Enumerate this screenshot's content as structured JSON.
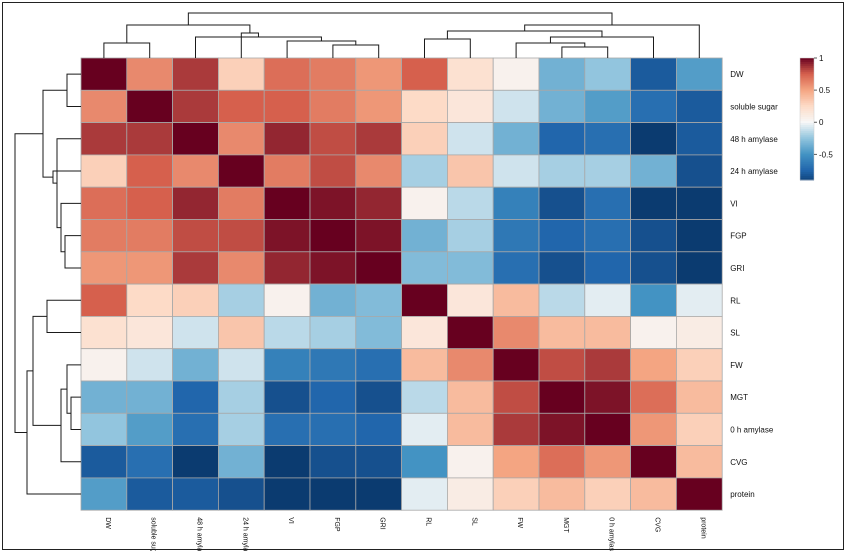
{
  "chart_data": {
    "type": "heatmap",
    "title": "",
    "labels": [
      "DW",
      "soluble sugar",
      "48 h amylase",
      "24 h amylase",
      "VI",
      "FGP",
      "GRI",
      "RL",
      "SL",
      "FW",
      "MGT",
      "0 h amylase",
      "CVG",
      "protein"
    ],
    "values": [
      [
        1.0,
        0.6,
        0.85,
        0.3,
        0.7,
        0.65,
        0.55,
        0.75,
        0.2,
        0.05,
        -0.35,
        -0.25,
        -0.8,
        -0.45
      ],
      [
        0.6,
        1.0,
        0.85,
        0.75,
        0.75,
        0.65,
        0.55,
        0.25,
        0.15,
        -0.1,
        -0.35,
        -0.45,
        -0.7,
        -0.8
      ],
      [
        0.85,
        0.85,
        1.0,
        0.6,
        0.9,
        0.8,
        0.85,
        0.3,
        -0.1,
        -0.35,
        -0.75,
        -0.7,
        -0.95,
        -0.8
      ],
      [
        0.3,
        0.75,
        0.6,
        1.0,
        0.65,
        0.8,
        0.6,
        -0.2,
        0.35,
        -0.1,
        -0.2,
        -0.2,
        -0.35,
        -0.85
      ],
      [
        0.7,
        0.75,
        0.9,
        0.65,
        1.0,
        0.95,
        0.9,
        0.05,
        -0.15,
        -0.6,
        -0.85,
        -0.7,
        -0.95,
        -0.95
      ],
      [
        0.65,
        0.65,
        0.8,
        0.8,
        0.95,
        1.0,
        0.95,
        -0.35,
        -0.2,
        -0.65,
        -0.75,
        -0.7,
        -0.85,
        -0.95
      ],
      [
        0.55,
        0.55,
        0.85,
        0.6,
        0.9,
        0.95,
        1.0,
        -0.3,
        -0.3,
        -0.7,
        -0.85,
        -0.75,
        -0.85,
        -0.95
      ],
      [
        0.75,
        0.25,
        0.3,
        -0.2,
        0.05,
        -0.35,
        -0.3,
        1.0,
        0.15,
        0.4,
        -0.15,
        -0.05,
        -0.5,
        -0.05
      ],
      [
        0.2,
        0.15,
        -0.1,
        0.35,
        -0.15,
        -0.2,
        -0.3,
        0.15,
        1.0,
        0.6,
        0.4,
        0.4,
        0.05,
        0.1
      ],
      [
        0.05,
        -0.1,
        -0.35,
        -0.1,
        -0.6,
        -0.65,
        -0.7,
        0.4,
        0.6,
        1.0,
        0.8,
        0.85,
        0.5,
        0.3
      ],
      [
        -0.35,
        -0.35,
        -0.75,
        -0.2,
        -0.85,
        -0.75,
        -0.85,
        -0.15,
        0.4,
        0.8,
        1.0,
        0.95,
        0.7,
        0.4
      ],
      [
        -0.25,
        -0.45,
        -0.7,
        -0.2,
        -0.7,
        -0.7,
        -0.75,
        -0.05,
        0.4,
        0.85,
        0.95,
        1.0,
        0.55,
        0.3
      ],
      [
        -0.8,
        -0.7,
        -0.95,
        -0.35,
        -0.95,
        -0.85,
        -0.85,
        -0.5,
        0.05,
        0.5,
        0.7,
        0.55,
        1.0,
        0.4
      ],
      [
        -0.45,
        -0.8,
        -0.8,
        -0.85,
        -0.95,
        -0.95,
        -0.95,
        -0.05,
        0.1,
        0.3,
        0.4,
        0.3,
        0.4,
        1.0
      ]
    ],
    "colorbar": {
      "ticks": [
        "1",
        "0.5",
        "0",
        "-0.5"
      ],
      "range": [
        -0.9,
        1.0
      ],
      "colors": {
        "high": "#67001f",
        "mid": "#f7f7f7",
        "low": "#053061"
      }
    },
    "dendrogram": {
      "rows": true,
      "columns": true
    },
    "legend": "right"
  }
}
